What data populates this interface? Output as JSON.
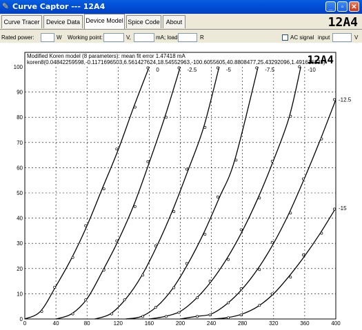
{
  "window": {
    "title": "Curve Captor --- 12A4"
  },
  "tabs": [
    {
      "label": "Curve Tracer"
    },
    {
      "label": "Device Data"
    },
    {
      "label": "Device Model",
      "active": true
    },
    {
      "label": "Spice Code"
    },
    {
      "label": "About"
    }
  ],
  "device_name": "12A4",
  "toolbar": {
    "rated_power_label": "Rated power:",
    "rated_power_unit": "W",
    "working_point_label": "Working point:",
    "volt_unit": "V,",
    "ma_load_label": "mA; load",
    "load_unit": "R",
    "ac_signal_label": "AC signal",
    "input_label": "input",
    "input_unit": "V"
  },
  "chart_data": {
    "type": "line",
    "title": "Modified Koren model (8 parameters): mean fit error 1.47418 mA",
    "subtitle": "koren8(0.04842259598,-0.1171696503,6.561427624,18.54552963,-100.6055605,40.8808477,25.43292096,1.491616235)",
    "device_label": "12A4",
    "xlim": [
      0,
      400
    ],
    "ylim": [
      0,
      100
    ],
    "x_ticks": [
      "0",
      "40",
      "80",
      "120",
      "160",
      "200",
      "240",
      "280",
      "320",
      "360",
      "400"
    ],
    "y_ticks": [
      "0",
      "10",
      "20",
      "30",
      "40",
      "50",
      "60",
      "70",
      "80",
      "90",
      "100"
    ],
    "grid": true,
    "series": [
      {
        "name": "0",
        "points": [
          [
            0,
            0
          ],
          [
            20,
            3
          ],
          [
            40,
            13
          ],
          [
            60,
            24
          ],
          [
            80,
            37
          ],
          [
            100,
            52
          ],
          [
            120,
            67
          ],
          [
            140,
            84
          ],
          [
            160,
            100
          ]
        ]
      },
      {
        "name": "-2.5",
        "points": [
          [
            40,
            0
          ],
          [
            60,
            2
          ],
          [
            80,
            8
          ],
          [
            100,
            19
          ],
          [
            120,
            31
          ],
          [
            140,
            45
          ],
          [
            160,
            62
          ],
          [
            180,
            80
          ],
          [
            200,
            100
          ]
        ]
      },
      {
        "name": "-5",
        "points": [
          [
            90,
            0
          ],
          [
            110,
            2
          ],
          [
            130,
            8
          ],
          [
            150,
            17
          ],
          [
            170,
            29
          ],
          [
            190,
            43
          ],
          [
            210,
            59
          ],
          [
            230,
            76
          ],
          [
            250,
            100
          ]
        ]
      },
      {
        "name": "-7.5",
        "points": [
          [
            130,
            0
          ],
          [
            150,
            1
          ],
          [
            170,
            5
          ],
          [
            190,
            12
          ],
          [
            210,
            22
          ],
          [
            230,
            34
          ],
          [
            250,
            48
          ],
          [
            270,
            63
          ],
          [
            300,
            100
          ]
        ]
      },
      {
        "name": "-10",
        "points": [
          [
            160,
            0
          ],
          [
            180,
            1
          ],
          [
            200,
            3
          ],
          [
            220,
            8
          ],
          [
            240,
            15
          ],
          [
            260,
            24
          ],
          [
            280,
            35
          ],
          [
            300,
            48
          ],
          [
            320,
            63
          ],
          [
            340,
            80
          ],
          [
            355,
            100
          ]
        ]
      },
      {
        "name": "-12.5",
        "points": [
          [
            200,
            0
          ],
          [
            220,
            1
          ],
          [
            240,
            2
          ],
          [
            260,
            6
          ],
          [
            280,
            12
          ],
          [
            300,
            20
          ],
          [
            320,
            30
          ],
          [
            340,
            42
          ],
          [
            360,
            56
          ],
          [
            380,
            71
          ],
          [
            400,
            87
          ]
        ]
      },
      {
        "name": "-15",
        "points": [
          [
            240,
            0
          ],
          [
            260,
            0.5
          ],
          [
            280,
            2
          ],
          [
            300,
            5
          ],
          [
            320,
            10
          ],
          [
            340,
            17
          ],
          [
            360,
            25
          ],
          [
            380,
            34
          ],
          [
            400,
            44
          ]
        ]
      }
    ],
    "label_positions": [
      {
        "text": "0",
        "x": 160
      },
      {
        "text": "-2.5",
        "x": 200
      },
      {
        "text": "-5",
        "x": 250
      },
      {
        "text": "-7.5",
        "x": 300
      },
      {
        "text": "-10",
        "x": 355
      }
    ],
    "side_labels": [
      {
        "text": "-12.5",
        "y": 87
      },
      {
        "text": "-15",
        "y": 44
      }
    ]
  }
}
